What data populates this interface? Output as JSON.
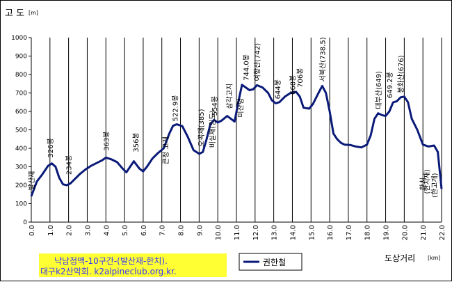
{
  "chart_data": {
    "type": "line",
    "ylabel": "고 도",
    "ylabel_unit": "[m]",
    "xlabel": "도상거리",
    "xlabel_unit": "[km]",
    "xlim": [
      0,
      22
    ],
    "ylim": [
      0,
      1000
    ],
    "x_ticks": [
      "0.0",
      "1.0",
      "2.0",
      "3.0",
      "4.0",
      "5.0",
      "6.0",
      "7.0",
      "8.0",
      "9.0",
      "10.0",
      "11.0",
      "12.0",
      "13.0",
      "14.0",
      "15.0",
      "16.0",
      "17.0",
      "18.0",
      "19.0",
      "20.0",
      "21.0",
      "22.0"
    ],
    "y_ticks": [
      "0",
      "100",
      "200",
      "300",
      "400",
      "500",
      "600",
      "700",
      "800",
      "900",
      "1000"
    ],
    "grid": "vertical",
    "legend": {
      "label": "권한철",
      "placement": "bottom-center"
    },
    "caption": [
      "낙남정맥-10구간-(발산재-한치).",
      "대구k2산악회. k2alpineclub.org.kr."
    ],
    "line_color": "#0a1a78",
    "caption_bg": "#ffff33",
    "series": [
      {
        "name": "권한철",
        "x": [
          0.0,
          0.3,
          0.6,
          0.9,
          1.1,
          1.3,
          1.5,
          1.7,
          1.9,
          2.1,
          2.3,
          2.6,
          2.9,
          3.2,
          3.5,
          3.8,
          4.0,
          4.3,
          4.6,
          4.9,
          5.1,
          5.3,
          5.5,
          5.8,
          6.0,
          6.2,
          6.5,
          6.8,
          7.1,
          7.4,
          7.6,
          7.8,
          8.1,
          8.4,
          8.7,
          9.0,
          9.2,
          9.4,
          9.6,
          9.8,
          10.0,
          10.2,
          10.5,
          10.7,
          10.9,
          11.1,
          11.3,
          11.5,
          11.7,
          11.9,
          12.1,
          12.4,
          12.7,
          12.9,
          13.1,
          13.3,
          13.6,
          13.9,
          14.2,
          14.4,
          14.6,
          14.9,
          15.1,
          15.4,
          15.6,
          15.8,
          16.0,
          16.2,
          16.4,
          16.6,
          16.8,
          17.1,
          17.4,
          17.7,
          18.0,
          18.2,
          18.4,
          18.6,
          18.8,
          19.0,
          19.2,
          19.4,
          19.6,
          19.8,
          20.0,
          20.2,
          20.4,
          20.7,
          21.0,
          21.3,
          21.6,
          21.8,
          22.0
        ],
        "y": [
          140,
          220,
          260,
          305,
          318,
          300,
          240,
          205,
          200,
          210,
          230,
          260,
          285,
          305,
          320,
          335,
          350,
          340,
          325,
          290,
          270,
          300,
          330,
          290,
          275,
          300,
          345,
          375,
          400,
          480,
          522,
          530,
          520,
          460,
          390,
          370,
          380,
          450,
          530,
          554,
          540,
          550,
          575,
          560,
          545,
          650,
          744,
          730,
          715,
          720,
          742,
          730,
          700,
          660,
          644,
          650,
          680,
          700,
          706,
          680,
          620,
          615,
          640,
          700,
          738,
          700,
          600,
          480,
          450,
          430,
          420,
          418,
          410,
          405,
          420,
          470,
          560,
          590,
          580,
          575,
          600,
          649,
          655,
          676,
          680,
          650,
          560,
          500,
          420,
          410,
          415,
          380,
          180
        ]
      }
    ],
    "annotations": [
      {
        "text": "발산재",
        "x": 0.0,
        "y": 150
      },
      {
        "text": "326봉",
        "x": 1.0,
        "y": 326
      },
      {
        "text": "234봉",
        "x": 2.0,
        "y": 234
      },
      {
        "text": "363봉",
        "x": 4.0,
        "y": 363
      },
      {
        "text": "356봉",
        "x": 5.6,
        "y": 356
      },
      {
        "text": "큰정 고개",
        "x": 7.2,
        "y": 290
      },
      {
        "text": "522.9봉",
        "x": 7.7,
        "y": 523
      },
      {
        "text": "오곡재(385)",
        "x": 9.1,
        "y": 385
      },
      {
        "text": "554봉",
        "x": 9.8,
        "y": 554
      },
      {
        "text": "비실재(임도)",
        "x": 9.7,
        "y": 380
      },
      {
        "text": "삼각고지",
        "x": 10.6,
        "y": 590
      },
      {
        "text": "미산령",
        "x": 11.2,
        "y": 545
      },
      {
        "text": "744.0봉",
        "x": 11.5,
        "y": 744
      },
      {
        "text": "여항산(742)",
        "x": 12.1,
        "y": 742
      },
      {
        "text": "644봉",
        "x": 13.2,
        "y": 644
      },
      {
        "text": "668봉",
        "x": 14.0,
        "y": 668
      },
      {
        "text": "706봉",
        "x": 14.4,
        "y": 706
      },
      {
        "text": "서북산(738.5)",
        "x": 15.6,
        "y": 738
      },
      {
        "text": "대부산(649)",
        "x": 18.6,
        "y": 590
      },
      {
        "text": "봉화산(676)",
        "x": 19.8,
        "y": 676
      },
      {
        "text": "649.2봉",
        "x": 19.2,
        "y": 649
      },
      {
        "text": "한치",
        "x": 21.0,
        "y": 150
      },
      {
        "text": "(한치재)",
        "x": 21.2,
        "y": 130
      },
      {
        "text": "(한고개)",
        "x": 21.6,
        "y": 110
      }
    ]
  }
}
